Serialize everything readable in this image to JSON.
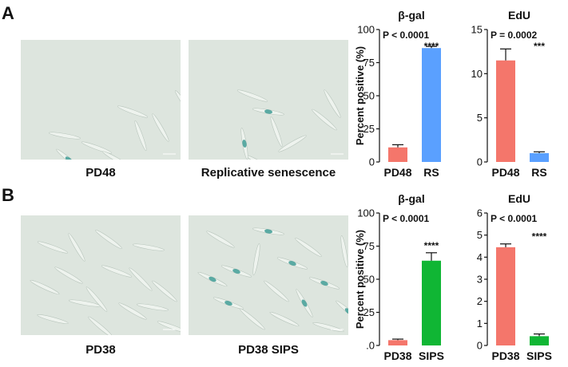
{
  "panels": {
    "A": {
      "letter": "A",
      "images": [
        {
          "caption": "PD48",
          "cells": [
            [
              60,
              150,
              40
            ],
            [
              95,
              135,
              20
            ],
            [
              150,
              120,
              70
            ],
            [
              175,
              110,
              60
            ],
            [
              120,
              150,
              30
            ],
            [
              205,
              80,
              55
            ],
            [
              55,
              120,
              10
            ],
            [
              140,
              90,
              20
            ]
          ],
          "stained": [
            [
              60,
              150,
              40
            ]
          ]
        },
        {
          "caption": "Replicative senescence",
          "cells": [
            [
              80,
              70,
              20
            ],
            [
              110,
              115,
              70
            ],
            [
              130,
              130,
              150
            ],
            [
              170,
              100,
              40
            ],
            [
              90,
              155,
              30
            ],
            [
              70,
              130,
              80
            ],
            [
              140,
              170,
              120
            ],
            [
              180,
              80,
              60
            ],
            [
              100,
              90,
              10
            ],
            [
              60,
              180,
              100
            ]
          ],
          "stained": [
            [
              70,
              130,
              80
            ],
            [
              100,
              90,
              10
            ],
            [
              140,
              170,
              120
            ],
            [
              60,
              180,
              100
            ]
          ]
        }
      ]
    },
    "B": {
      "letter": "B",
      "images": [
        {
          "caption": "PD38",
          "cells": [
            [
              40,
              40,
              20
            ],
            [
              60,
              75,
              30
            ],
            [
              80,
              110,
              10
            ],
            [
              100,
              140,
              40
            ],
            [
              120,
              70,
              20
            ],
            [
              140,
              120,
              30
            ],
            [
              160,
              40,
              10
            ],
            [
              180,
              95,
              40
            ],
            [
              40,
              130,
              15
            ],
            [
              70,
              40,
              60
            ],
            [
              150,
              80,
              45
            ],
            [
              190,
              140,
              20
            ],
            [
              110,
              30,
              35
            ],
            [
              30,
              90,
              25
            ],
            [
              95,
              105,
              50
            ],
            [
              165,
              115,
              10
            ]
          ],
          "stained": []
        },
        {
          "caption": "PD38 SIPS",
          "cells": [
            [
              40,
              30,
              30
            ],
            [
              60,
              70,
              20
            ],
            [
              85,
              55,
              100
            ],
            [
              110,
              95,
              40
            ],
            [
              130,
              60,
              20
            ],
            [
              150,
              40,
              35
            ],
            [
              170,
              85,
              20
            ],
            [
              195,
              45,
              80
            ],
            [
              50,
              110,
              20
            ],
            [
              80,
              130,
              40
            ],
            [
              120,
              130,
              25
            ],
            [
              145,
              110,
              60
            ],
            [
              175,
              140,
              15
            ],
            [
              200,
              120,
              40
            ],
            [
              30,
              80,
              25
            ],
            [
              100,
              20,
              10
            ]
          ],
          "stained": [
            [
              60,
              70,
              20
            ],
            [
              130,
              60,
              20
            ],
            [
              170,
              85,
              20
            ],
            [
              50,
              110,
              20
            ],
            [
              145,
              110,
              60
            ],
            [
              200,
              120,
              40
            ],
            [
              30,
              80,
              25
            ],
            [
              100,
              20,
              10
            ]
          ]
        }
      ]
    }
  },
  "colors": {
    "pd": "#f4766b",
    "rs": "#5aa0ff",
    "sips": "#10b634",
    "micro_bg": "#dde5de",
    "stain": "#3f9c95"
  },
  "chart_data": [
    {
      "type": "bar",
      "id": "A-bgal",
      "title": "β-gal",
      "ylabel": "Percent positive (%)",
      "ylim": [
        0,
        100
      ],
      "yticks": [
        "0",
        "25",
        "50",
        "75",
        "100"
      ],
      "categories": [
        "PD48",
        "RS"
      ],
      "values": [
        11,
        86
      ],
      "errors": [
        2,
        1.3
      ],
      "colors": [
        "#f4766b",
        "#5aa0ff"
      ],
      "pvalue": "P < 0.0001",
      "stars": "****"
    },
    {
      "type": "bar",
      "id": "A-edu",
      "title": "EdU",
      "ylabel": "",
      "ylim": [
        0,
        15
      ],
      "yticks": [
        "0",
        "5",
        "10",
        "15"
      ],
      "categories": [
        "PD48",
        "RS"
      ],
      "values": [
        11.5,
        1.0
      ],
      "errors": [
        1.3,
        0.15
      ],
      "colors": [
        "#f4766b",
        "#5aa0ff"
      ],
      "pvalue": "P = 0.0002",
      "stars": "***"
    },
    {
      "type": "bar",
      "id": "B-bgal",
      "title": "β-gal",
      "ylabel": "Percent positive (%)",
      "ylim": [
        0,
        100
      ],
      "yticks": [
        ".0",
        "25",
        "50",
        "75",
        "100"
      ],
      "categories": [
        "PD38",
        "SIPS"
      ],
      "values": [
        4,
        64
      ],
      "errors": [
        0.8,
        6
      ],
      "colors": [
        "#f4766b",
        "#10b634"
      ],
      "pvalue": "P < 0.0001",
      "stars": "****"
    },
    {
      "type": "bar",
      "id": "B-edu",
      "title": "EdU",
      "ylabel": "",
      "ylim": [
        0,
        6
      ],
      "yticks": [
        "0",
        "1",
        "2",
        "3",
        "4",
        "5",
        "6"
      ],
      "categories": [
        "PD38",
        "SIPS"
      ],
      "values": [
        4.45,
        0.42
      ],
      "errors": [
        0.15,
        0.1
      ],
      "colors": [
        "#f4766b",
        "#10b634"
      ],
      "pvalue": "P < 0.0001",
      "stars": "****"
    }
  ]
}
